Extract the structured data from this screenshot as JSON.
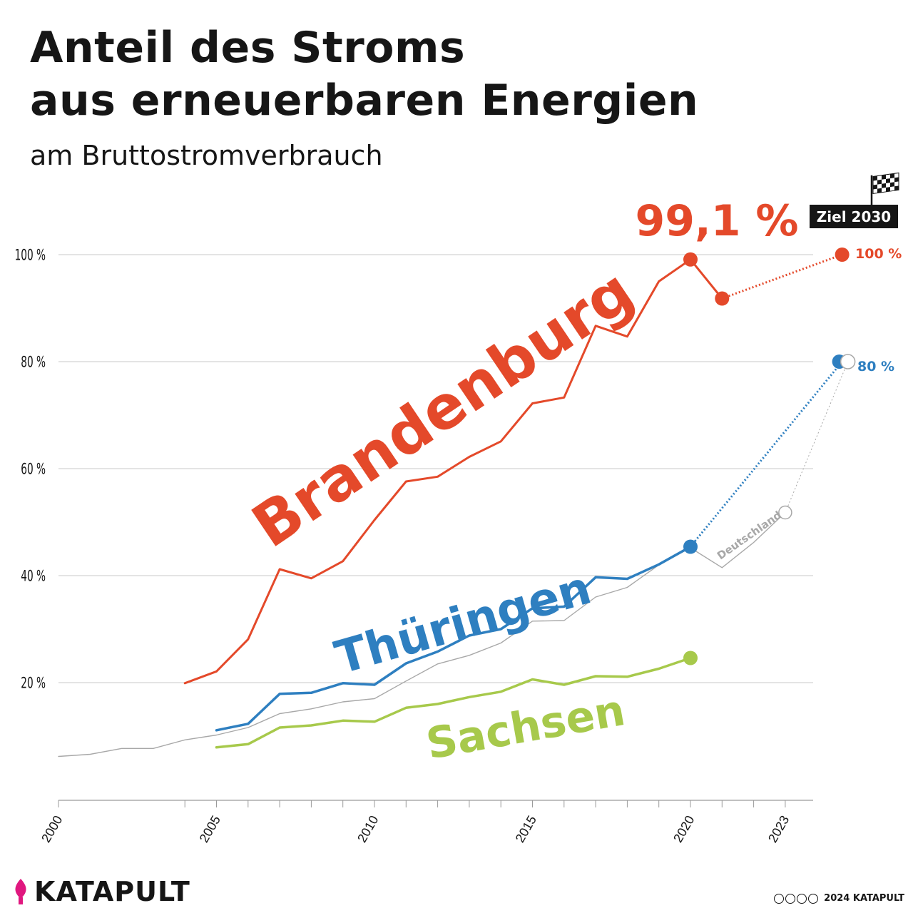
{
  "header": {
    "title_line1": "Anteil des Stroms",
    "title_line2": "aus erneuerbaren Energien",
    "subtitle": "am Bruttostromverbrauch"
  },
  "chart_data": {
    "type": "line",
    "title": "Anteil des Stroms aus erneuerbaren Energien",
    "subtitle": "am Bruttostromverbrauch",
    "xlim": [
      2000,
      2024
    ],
    "ylim": [
      -2,
      100
    ],
    "y_ticks": [
      20,
      40,
      60,
      80,
      100
    ],
    "y_tick_labels": [
      "20 %",
      "40 %",
      "60 %",
      "80 %",
      "100 %"
    ],
    "x_tick_labels": [
      {
        "x": 2000,
        "label": "2000"
      },
      {
        "x": 2005,
        "label": "2005"
      },
      {
        "x": 2010,
        "label": "2010"
      },
      {
        "x": 2015,
        "label": "2015"
      },
      {
        "x": 2020,
        "label": "2020"
      },
      {
        "x": 2023,
        "label": "2023"
      }
    ],
    "x_minor_ticks": [
      2004,
      2006,
      2007,
      2008,
      2009,
      2011,
      2012,
      2013,
      2014,
      2016,
      2017,
      2018,
      2019,
      2021,
      2022
    ],
    "grid": "horizontal",
    "series": [
      {
        "name": "Deutschland",
        "color": "#a8a8a8",
        "x": [
          2000,
          2001,
          2002,
          2003,
          2004,
          2005,
          2006,
          2007,
          2008,
          2009,
          2010,
          2011,
          2012,
          2013,
          2014,
          2015,
          2016,
          2017,
          2018,
          2019,
          2020,
          2021,
          2022,
          2023
        ],
        "values": [
          6.2,
          6.6,
          7.7,
          7.7,
          9.3,
          10.2,
          11.6,
          14.2,
          15.1,
          16.4,
          17.0,
          20.3,
          23.5,
          25.1,
          27.4,
          31.5,
          31.6,
          36.0,
          37.8,
          42.0,
          45.2,
          41.5,
          46.2,
          51.8
        ],
        "target": {
          "x": 2024.8,
          "value": 80,
          "label": "80 %"
        }
      },
      {
        "name": "Brandenburg",
        "color": "#e4492a",
        "x": [
          2004,
          2005,
          2006,
          2007,
          2008,
          2009,
          2010,
          2011,
          2012,
          2013,
          2014,
          2015,
          2016,
          2017,
          2018,
          2019,
          2020,
          2021
        ],
        "values": [
          19.9,
          22.1,
          28.1,
          41.2,
          39.5,
          42.7,
          50.4,
          57.6,
          58.5,
          62.2,
          65.1,
          72.2,
          73.3,
          86.7,
          84.7,
          95.0,
          99.1,
          91.8
        ],
        "highlight": {
          "x": 2020,
          "value": 99.1,
          "label": "99,1 %"
        },
        "target": {
          "x": 2024.8,
          "value": 100,
          "label": "100 %"
        }
      },
      {
        "name": "Thüringen",
        "color": "#2e7fc0",
        "x": [
          2005,
          2006,
          2007,
          2008,
          2009,
          2010,
          2011,
          2012,
          2013,
          2014,
          2015,
          2016,
          2017,
          2018,
          2019,
          2020
        ],
        "values": [
          11.1,
          12.3,
          17.9,
          18.1,
          19.9,
          19.6,
          23.6,
          25.8,
          28.8,
          30.0,
          33.9,
          34.2,
          39.7,
          39.4,
          42.1,
          45.4
        ],
        "target": {
          "x": 2024.8,
          "value": 80,
          "label": "80 %"
        }
      },
      {
        "name": "Sachsen",
        "color": "#a7c94b",
        "x": [
          2005,
          2006,
          2007,
          2008,
          2009,
          2010,
          2011,
          2012,
          2013,
          2014,
          2015,
          2016,
          2017,
          2018,
          2019,
          2020
        ],
        "values": [
          7.9,
          8.5,
          11.6,
          12.0,
          12.9,
          12.7,
          15.3,
          16.0,
          17.3,
          18.3,
          20.6,
          19.6,
          21.2,
          21.1,
          22.6,
          24.6
        ]
      }
    ],
    "annotations": {
      "goal_badge": "Ziel 2030",
      "highlight_label": "99,1 %"
    }
  },
  "footer": {
    "brand": "KATAPULT",
    "copyright": "2024 KATAPULT"
  },
  "colors": {
    "text": "#161616",
    "grid": "#c8c8c8",
    "brandenburg": "#e4492a",
    "thueringen": "#2e7fc0",
    "sachsen": "#a7c94b",
    "deutschland": "#a8a8a8",
    "logo_accent": "#e0177f"
  },
  "icons": [
    "checkered-flag-icon",
    "katapult-logo-icon",
    "creative-commons-icon"
  ]
}
